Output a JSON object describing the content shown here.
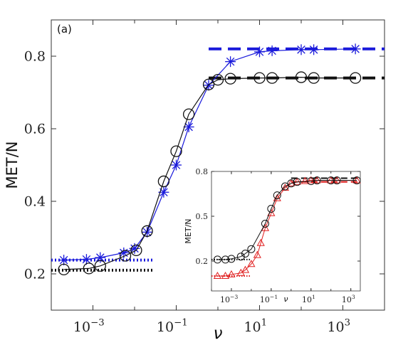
{
  "chart_data": [
    {
      "type": "line",
      "panel_label": "(a)",
      "xlabel": "ν",
      "ylabel": "MET/N",
      "xscale": "log",
      "xlim": [
        0.0001,
        10000
      ],
      "ylim": [
        0.1,
        0.9
      ],
      "x_ticks": [
        {
          "value": 0.001,
          "base": "10",
          "exp": "−3"
        },
        {
          "value": 0.1,
          "base": "10",
          "exp": "−1"
        },
        {
          "value": 10,
          "base": "10",
          "exp": "1"
        },
        {
          "value": 1000,
          "base": "10",
          "exp": "3"
        }
      ],
      "y_ticks": [
        {
          "value": 0.2,
          "label": "0.2"
        },
        {
          "value": 0.4,
          "label": "0.4"
        },
        {
          "value": 0.6,
          "label": "0.6"
        },
        {
          "value": 0.8,
          "label": "0.8"
        }
      ],
      "grid": false,
      "series": [
        {
          "color": "#1a1adb",
          "marker": "asterisk",
          "x": [
            0.0002,
            0.0007,
            0.0015,
            0.0055,
            0.01,
            0.02,
            0.05,
            0.1,
            0.2,
            0.6,
            2,
            10,
            20,
            100,
            200,
            2000
          ],
          "y": [
            0.238,
            0.24,
            0.245,
            0.258,
            0.27,
            0.315,
            0.425,
            0.5,
            0.605,
            0.72,
            0.785,
            0.812,
            0.815,
            0.818,
            0.818,
            0.82
          ]
        },
        {
          "color": "#111111",
          "marker": "circle",
          "x": [
            0.0002,
            0.0008,
            0.0015,
            0.006,
            0.011,
            0.02,
            0.05,
            0.1,
            0.2,
            0.6,
            1.0,
            2.0,
            10,
            20,
            100,
            200,
            2000
          ],
          "y": [
            0.212,
            0.215,
            0.222,
            0.25,
            0.265,
            0.318,
            0.455,
            0.538,
            0.64,
            0.722,
            0.735,
            0.738,
            0.74,
            0.74,
            0.742,
            0.74,
            0.74
          ]
        }
      ],
      "reference_lines": [
        {
          "color": "#1a1adb",
          "style": "dotted",
          "y": 0.238,
          "x_range": [
            0.0001,
            0.03
          ]
        },
        {
          "color": "#111111",
          "style": "dotted",
          "y": 0.21,
          "x_range": [
            0.0001,
            0.03
          ]
        },
        {
          "color": "#1a1adb",
          "style": "dashed",
          "y": 0.82,
          "x_range": [
            0.6,
            10000
          ]
        },
        {
          "color": "#111111",
          "style": "dashed",
          "y": 0.74,
          "x_range": [
            0.6,
            10000
          ]
        }
      ]
    },
    {
      "type": "line",
      "role": "inset",
      "xlabel": "ν",
      "ylabel": "MET/N",
      "xscale": "log",
      "xlim": [
        0.0001,
        3000
      ],
      "ylim": [
        0.0,
        0.8
      ],
      "x_ticks": [
        {
          "value": 0.001,
          "base": "10",
          "exp": "−3"
        },
        {
          "value": 0.1,
          "base": "10",
          "exp": "−1"
        },
        {
          "value": 10,
          "base": "10",
          "exp": "1"
        },
        {
          "value": 1000,
          "base": "10",
          "exp": "3"
        }
      ],
      "y_ticks": [
        {
          "value": 0.2,
          "label": "0.2"
        },
        {
          "value": 0.5,
          "label": "0.5"
        },
        {
          "value": 0.8,
          "label": "0.8"
        }
      ],
      "grid": false,
      "series": [
        {
          "color": "#e02020",
          "marker": "triangle",
          "x": [
            0.0002,
            0.0005,
            0.001,
            0.003,
            0.005,
            0.01,
            0.02,
            0.03,
            0.05,
            0.1,
            0.2,
            0.5,
            1,
            2,
            5,
            10,
            20,
            100,
            200,
            2000
          ],
          "y": [
            0.1,
            0.1,
            0.11,
            0.12,
            0.14,
            0.18,
            0.24,
            0.32,
            0.42,
            0.52,
            0.62,
            0.69,
            0.72,
            0.73,
            0.735,
            0.74,
            0.74,
            0.74,
            0.74,
            0.74
          ]
        },
        {
          "color": "#111111",
          "marker": "circle",
          "x": [
            0.0002,
            0.0005,
            0.001,
            0.003,
            0.005,
            0.01,
            0.05,
            0.1,
            0.2,
            0.5,
            1,
            2,
            10,
            20,
            100,
            200,
            2000
          ],
          "y": [
            0.21,
            0.21,
            0.215,
            0.23,
            0.25,
            0.28,
            0.45,
            0.55,
            0.64,
            0.7,
            0.72,
            0.73,
            0.735,
            0.74,
            0.74,
            0.74,
            0.74
          ]
        }
      ],
      "reference_lines": [
        {
          "color": "#e02020",
          "style": "dotted",
          "y": 0.1,
          "x_range": [
            0.0001,
            0.01
          ]
        },
        {
          "color": "#111111",
          "style": "dotted",
          "y": 0.21,
          "x_range": [
            0.0001,
            0.01
          ]
        },
        {
          "color": "#e02020",
          "style": "dashed",
          "y": 0.73,
          "x_range": [
            1,
            3000
          ]
        },
        {
          "color": "#111111",
          "style": "dashed",
          "y": 0.755,
          "x_range": [
            1,
            3000
          ]
        }
      ]
    }
  ]
}
